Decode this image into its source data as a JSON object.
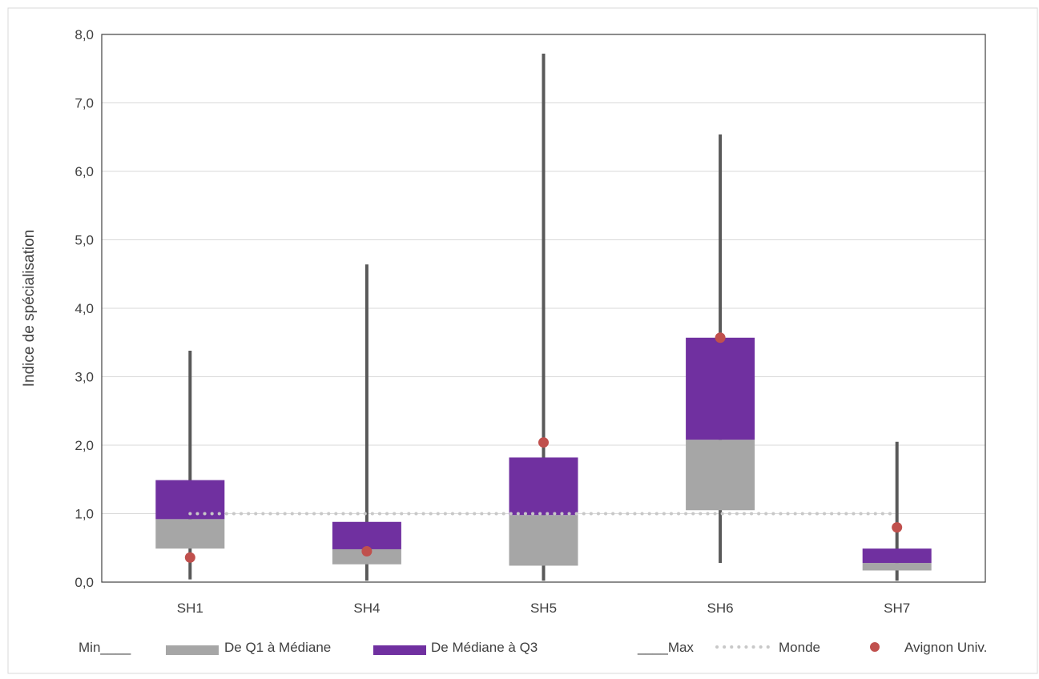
{
  "chart_data": {
    "type": "boxplot",
    "ylabel": "Indice de spécialisation",
    "ylim": [
      0,
      8
    ],
    "y_ticks": [
      "0,0",
      "1,0",
      "2,0",
      "3,0",
      "4,0",
      "5,0",
      "6,0",
      "7,0",
      "8,0"
    ],
    "y_tick_values": [
      0,
      1,
      2,
      3,
      4,
      5,
      6,
      7,
      8
    ],
    "grid": true,
    "categories": [
      "SH1",
      "SH4",
      "SH5",
      "SH6",
      "SH7"
    ],
    "series": [
      {
        "name": "Min",
        "values": [
          0.04,
          0.02,
          0.02,
          0.28,
          0.02
        ]
      },
      {
        "name": "De Q1 à Médiane",
        "values": [
          [
            0.49,
            0.92
          ],
          [
            0.26,
            0.48
          ],
          [
            0.24,
            0.98
          ],
          [
            1.05,
            2.08
          ],
          [
            0.17,
            0.28
          ]
        ]
      },
      {
        "name": "De Médiane à Q3",
        "values": [
          [
            0.92,
            1.49
          ],
          [
            0.48,
            0.88
          ],
          [
            0.98,
            1.82
          ],
          [
            2.08,
            3.57
          ],
          [
            0.28,
            0.49
          ]
        ]
      },
      {
        "name": "Max",
        "values": [
          3.38,
          4.64,
          7.72,
          6.54,
          2.05
        ]
      },
      {
        "name": "Monde",
        "values": [
          1.0,
          1.0,
          1.0,
          1.0,
          1.0
        ]
      },
      {
        "name": "Avignon Univ.",
        "values": [
          0.36,
          0.45,
          2.04,
          3.57,
          0.8
        ]
      }
    ],
    "colors": {
      "whisker": "#595959",
      "q1_median": "#a6a6a6",
      "median_q3": "#7030a0",
      "monde": "#c8c8c8",
      "point": "#c0504d",
      "grid": "#d9d9d9",
      "axis": "#404040"
    },
    "legend": {
      "placement": "bottom",
      "items": {
        "min": "Min____",
        "q1": "De Q1 à Médiane",
        "q3": "De Médiane à Q3",
        "max": "____Max",
        "monde": "Monde",
        "point": "Avignon Univ."
      }
    }
  }
}
